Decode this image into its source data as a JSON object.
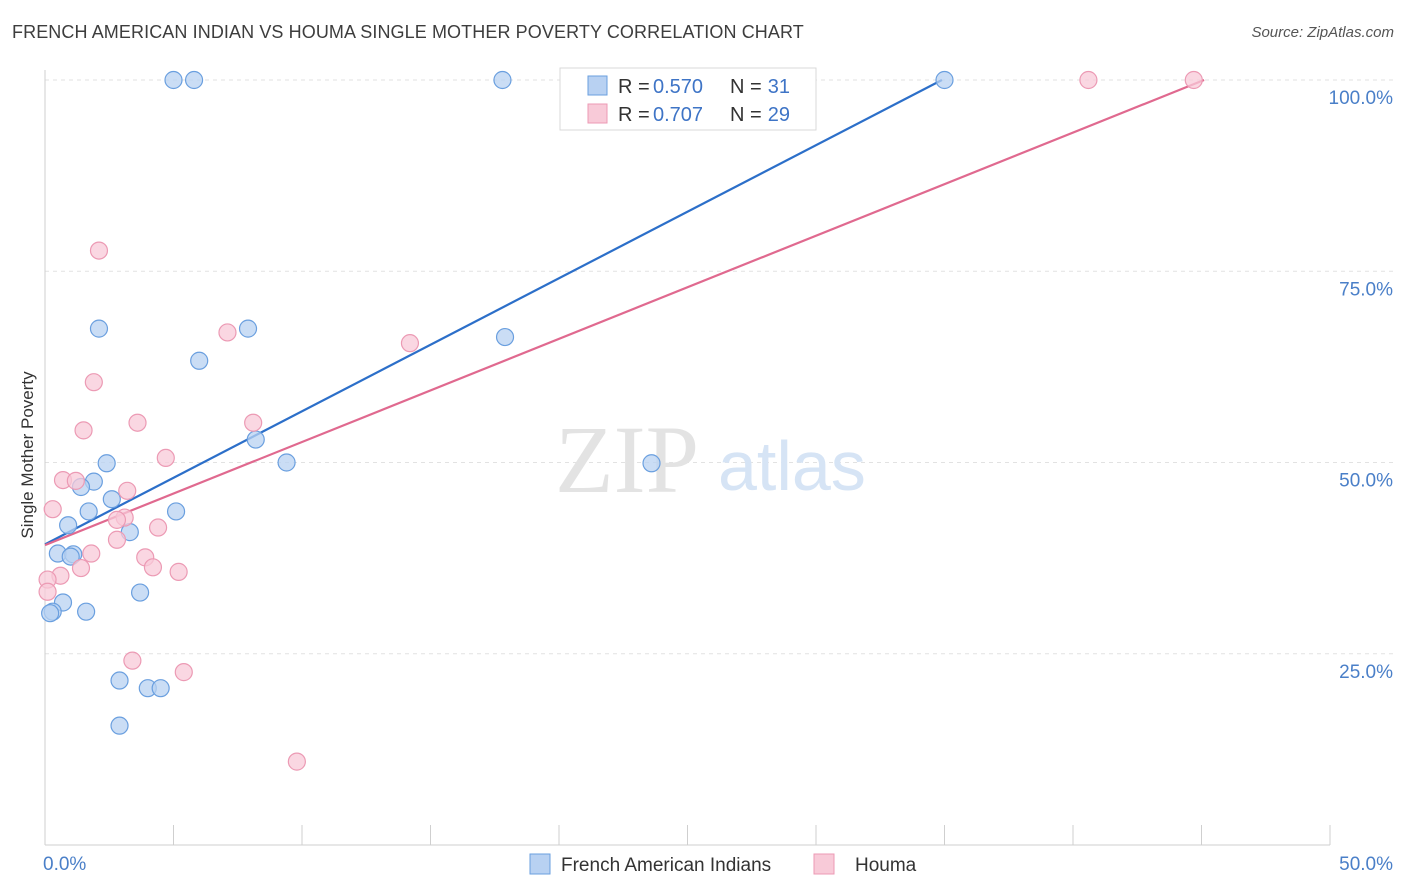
{
  "title": "FRENCH AMERICAN INDIAN VS HOUMA SINGLE MOTHER POVERTY CORRELATION CHART",
  "source": "Source: ZipAtlas.com",
  "watermark": {
    "zip": "ZIP",
    "atlas": "atlas"
  },
  "chart_data": {
    "type": "scatter",
    "title": "FRENCH AMERICAN INDIAN VS HOUMA SINGLE MOTHER POVERTY CORRELATION CHART",
    "xlabel": "",
    "ylabel": "Single Mother Poverty",
    "xlim": [
      0,
      50
    ],
    "ylim": [
      0,
      100
    ],
    "x_tick_labels": [
      "0.0%",
      "50.0%"
    ],
    "y_ticks": [
      25,
      50,
      75,
      100
    ],
    "y_tick_labels": [
      "25.0%",
      "50.0%",
      "75.0%",
      "100.0%"
    ],
    "grid": true,
    "legend_position": "top-center",
    "series": [
      {
        "name": "French American Indians",
        "color": "#6a9fdf",
        "fill": "#b8d1f2",
        "line_color": "#2c6fc9",
        "R": "0.570",
        "N": "31",
        "trend": {
          "x": [
            0,
            34.9
          ],
          "y": [
            39.3,
            100.0
          ]
        },
        "points": [
          [
            5.0,
            100
          ],
          [
            5.8,
            100
          ],
          [
            17.8,
            100
          ],
          [
            35.0,
            100
          ],
          [
            2.1,
            67.5
          ],
          [
            7.9,
            67.5
          ],
          [
            17.9,
            66.4
          ],
          [
            6.0,
            63.3
          ],
          [
            8.2,
            53.0
          ],
          [
            9.4,
            50.0
          ],
          [
            23.6,
            49.9
          ],
          [
            2.4,
            49.9
          ],
          [
            1.9,
            47.5
          ],
          [
            1.4,
            46.8
          ],
          [
            2.6,
            45.2
          ],
          [
            1.7,
            43.6
          ],
          [
            5.1,
            43.6
          ],
          [
            0.9,
            41.8
          ],
          [
            3.3,
            40.9
          ],
          [
            0.5,
            38.1
          ],
          [
            1.1,
            38.0
          ],
          [
            1.0,
            37.7
          ],
          [
            3.7,
            33.0
          ],
          [
            0.7,
            31.7
          ],
          [
            0.3,
            30.5
          ],
          [
            0.2,
            30.3
          ],
          [
            1.6,
            30.5
          ],
          [
            2.9,
            21.5
          ],
          [
            4.0,
            20.5
          ],
          [
            4.5,
            20.5
          ],
          [
            2.9,
            15.6
          ]
        ]
      },
      {
        "name": "Houma",
        "color": "#ec9ab4",
        "fill": "#f8cad8",
        "line_color": "#e0698f",
        "R": "0.707",
        "N": "29",
        "trend": {
          "x": [
            0,
            45.1
          ],
          "y": [
            39.2,
            100.0
          ]
        },
        "points": [
          [
            40.6,
            100
          ],
          [
            44.7,
            100
          ],
          [
            2.1,
            77.7
          ],
          [
            7.1,
            67.0
          ],
          [
            14.2,
            65.6
          ],
          [
            1.9,
            60.5
          ],
          [
            3.6,
            55.2
          ],
          [
            8.1,
            55.2
          ],
          [
            1.5,
            54.2
          ],
          [
            4.7,
            50.6
          ],
          [
            0.7,
            47.7
          ],
          [
            1.2,
            47.6
          ],
          [
            3.2,
            46.3
          ],
          [
            0.3,
            43.9
          ],
          [
            3.1,
            42.8
          ],
          [
            2.8,
            42.5
          ],
          [
            4.4,
            41.5
          ],
          [
            2.8,
            39.9
          ],
          [
            1.8,
            38.1
          ],
          [
            3.9,
            37.6
          ],
          [
            4.2,
            36.3
          ],
          [
            1.4,
            36.2
          ],
          [
            5.2,
            35.7
          ],
          [
            0.6,
            35.2
          ],
          [
            0.1,
            34.7
          ],
          [
            0.1,
            33.1
          ],
          [
            3.4,
            24.1
          ],
          [
            5.4,
            22.6
          ],
          [
            9.8,
            10.9
          ]
        ]
      }
    ]
  }
}
